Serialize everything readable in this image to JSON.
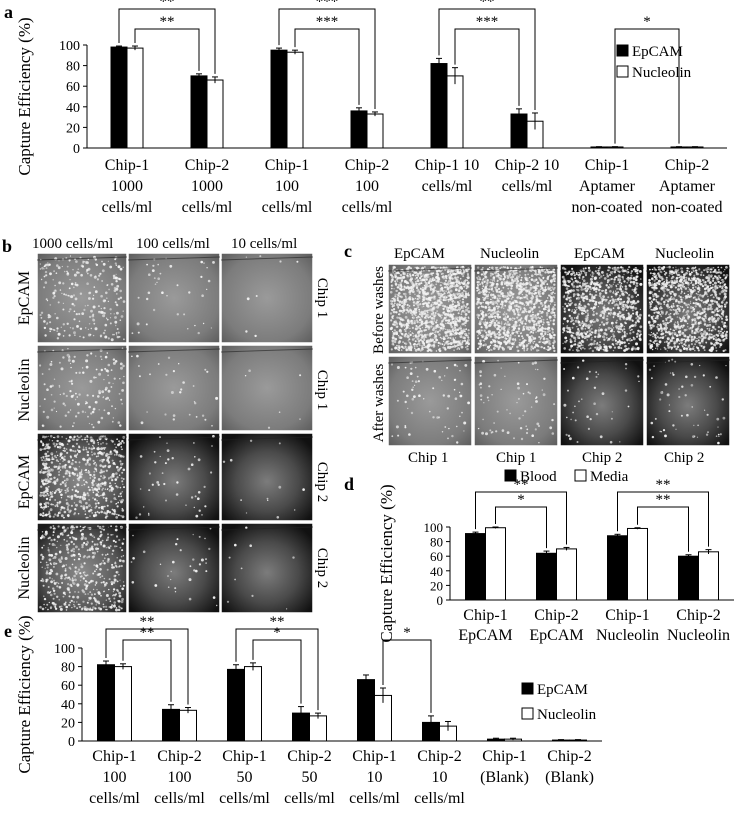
{
  "panels": {
    "a": {
      "letter": "a",
      "chart_data": {
        "type": "bar",
        "ylabel": "Capture Efficiency (%)",
        "ylim": [
          0,
          100
        ],
        "yticks": [
          0,
          20,
          40,
          60,
          80,
          100
        ],
        "categories": [
          [
            "Chip-1",
            "1000",
            "cells/ml"
          ],
          [
            "Chip-2",
            "1000",
            "cells/ml"
          ],
          [
            "Chip-1",
            "100",
            "cells/ml"
          ],
          [
            "Chip-2",
            "100",
            "cells/ml"
          ],
          [
            "Chip-1 10",
            "cells/ml"
          ],
          [
            "Chip-2 10",
            "cells/ml"
          ],
          [
            "Chip-1",
            "Aptamer",
            "non-coated"
          ],
          [
            "Chip-2",
            "Aptamer",
            "non-coated"
          ]
        ],
        "series": [
          {
            "name": "EpCAM",
            "color": "#000000",
            "values": [
              98,
              70,
              95,
              36,
              82,
              33,
              1,
              1
            ],
            "errors": [
              1,
              2,
              2,
              3,
              5,
              5,
              0.3,
              0.3
            ]
          },
          {
            "name": "Nucleolin",
            "color": "#ffffff",
            "values": [
              97,
              66,
              93,
              33,
              70,
              26,
              1,
              1
            ],
            "errors": [
              2,
              3,
              2,
              2,
              8,
              8,
              0.3,
              0.3
            ]
          }
        ],
        "legend": "right",
        "significance": [
          {
            "from": 0,
            "to": 1,
            "level": 2,
            "label": "**"
          },
          {
            "from": 0,
            "to": 1,
            "level": 1,
            "label": "**"
          },
          {
            "from": 2,
            "to": 3,
            "level": 2,
            "label": "***"
          },
          {
            "from": 2,
            "to": 3,
            "level": 1,
            "label": "***"
          },
          {
            "from": 4,
            "to": 5,
            "level": 2,
            "label": "**"
          },
          {
            "from": 4,
            "to": 5,
            "level": 1,
            "label": "***"
          },
          {
            "from": 6,
            "to": 7,
            "level": 1,
            "label": "*"
          }
        ]
      }
    },
    "b": {
      "letter": "b",
      "columns": [
        "1000 cells/ml",
        "100 cells/ml",
        "10 cells/ml"
      ],
      "rows": [
        {
          "label": "EpCAM",
          "chip": "Chip 1"
        },
        {
          "label": "Nucleolin",
          "chip": "Chip 1"
        },
        {
          "label": "EpCAM",
          "chip": "Chip 2"
        },
        {
          "label": "Nucleolin",
          "chip": "Chip 2"
        }
      ]
    },
    "c": {
      "letter": "c",
      "columns": [
        "EpCAM",
        "Nucleolin",
        "EpCAM",
        "Nucleolin"
      ],
      "rows": [
        "Before washes",
        "After washes"
      ],
      "bottom": [
        "Chip 1",
        "Chip 1",
        "Chip 2",
        "Chip 2"
      ]
    },
    "d": {
      "letter": "d",
      "chart_data": {
        "type": "bar",
        "ylabel": "Capture Efficiency (%)",
        "ylim": [
          0,
          100
        ],
        "yticks": [
          0,
          20,
          40,
          60,
          80,
          100
        ],
        "categories": [
          [
            "Chip-1",
            "EpCAM"
          ],
          [
            "Chip-2",
            "EpCAM"
          ],
          [
            "Chip-1",
            "Nucleolin"
          ],
          [
            "Chip-2",
            "Nucleolin"
          ]
        ],
        "series": [
          {
            "name": "Blood",
            "color": "#000000",
            "values": [
              91,
              64,
              88,
              60
            ],
            "errors": [
              2,
              3,
              2,
              2
            ]
          },
          {
            "name": "Media",
            "color": "#ffffff",
            "values": [
              99,
              70,
              98,
              66
            ],
            "errors": [
              1,
              2,
              1,
              3
            ]
          }
        ],
        "legend": "top",
        "significance": [
          {
            "from": 0,
            "to": 1,
            "level": 2,
            "label": "**"
          },
          {
            "from": 0,
            "to": 1,
            "level": 1,
            "label": "*"
          },
          {
            "from": 2,
            "to": 3,
            "level": 2,
            "label": "**"
          },
          {
            "from": 2,
            "to": 3,
            "level": 1,
            "label": "**"
          }
        ]
      }
    },
    "e": {
      "letter": "e",
      "chart_data": {
        "type": "bar",
        "ylabel": "Capture Efficiency (%)",
        "ylim": [
          0,
          100
        ],
        "yticks": [
          0,
          20,
          40,
          60,
          80,
          100
        ],
        "categories": [
          [
            "Chip-1",
            "100",
            "cells/ml"
          ],
          [
            "Chip-2",
            "100",
            "cells/ml"
          ],
          [
            "Chip-1",
            "50",
            "cells/ml"
          ],
          [
            "Chip-2",
            "50",
            "cells/ml"
          ],
          [
            "Chip-1",
            "10",
            "cells/ml"
          ],
          [
            "Chip-2",
            "10",
            "cells/ml"
          ],
          [
            "Chip-1",
            "(Blank)"
          ],
          [
            "Chip-2",
            "(Blank)"
          ]
        ],
        "series": [
          {
            "name": "EpCAM",
            "color": "#000000",
            "values": [
              82,
              34,
              77,
              30,
              66,
              20,
              2,
              1
            ],
            "errors": [
              4,
              5,
              5,
              7,
              5,
              7,
              1,
              0.5
            ]
          },
          {
            "name": "Nucleolin",
            "color": "#ffffff",
            "values": [
              80,
              33,
              80,
              27,
              49,
              16,
              2,
              1
            ],
            "errors": [
              3,
              3,
              4,
              3,
              8,
              5,
              1,
              0.5
            ]
          }
        ],
        "legend": "right",
        "significance": [
          {
            "from": 0,
            "to": 1,
            "level": 2,
            "label": "**"
          },
          {
            "from": 0,
            "to": 1,
            "level": 1,
            "label": "**"
          },
          {
            "from": 2,
            "to": 3,
            "level": 2,
            "label": "**"
          },
          {
            "from": 2,
            "to": 3,
            "level": 1,
            "label": "*"
          },
          {
            "from": 4,
            "to": 5,
            "level": 1,
            "label": "*"
          }
        ]
      }
    }
  }
}
